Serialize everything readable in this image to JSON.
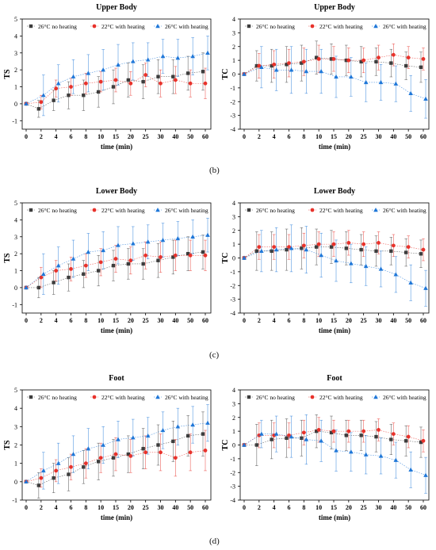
{
  "panel_letters": [
    "(b)",
    "(c)",
    "(d)"
  ],
  "colors": {
    "no_heating": "#3d3d3d",
    "w22_heating": "#e8322b",
    "w26_heating": "#1f77d8",
    "axis": "#000000"
  },
  "chart_data": [
    {
      "type": "scatter",
      "title": "Upper Body",
      "xlabel": "time (min)",
      "ylabel": "TS",
      "categories": [
        "0",
        "2",
        "4",
        "6",
        "8",
        "10",
        "15",
        "20",
        "25",
        "30",
        "40",
        "50",
        "60"
      ],
      "ylim": [
        -1.5,
        5
      ],
      "yticks": [
        -1,
        0,
        1,
        2,
        3,
        4,
        5
      ],
      "legend": "top",
      "grid": false,
      "series": [
        {
          "name": "26°C no heating",
          "marker": "square",
          "values": [
            0,
            -0.3,
            0.2,
            0.5,
            0.5,
            0.7,
            1.0,
            1.4,
            1.3,
            1.6,
            1.6,
            1.8,
            1.9
          ],
          "error": [
            0,
            0.5,
            0.6,
            0.8,
            0.9,
            0.9,
            1.0,
            1.0,
            1.0,
            1.0,
            1.0,
            1.0,
            1.1
          ]
        },
        {
          "name": "22°C with heating",
          "marker": "circle",
          "values": [
            0,
            0.1,
            0.9,
            1.0,
            1.2,
            1.3,
            1.4,
            1.2,
            1.7,
            1.2,
            1.4,
            1.2,
            1.2
          ],
          "error": [
            0,
            0.4,
            0.5,
            0.5,
            0.6,
            0.6,
            0.7,
            0.7,
            0.7,
            0.8,
            0.8,
            0.8,
            0.9
          ]
        },
        {
          "name": "26°C with heating",
          "marker": "triangle",
          "values": [
            0,
            0.5,
            1.2,
            1.6,
            1.8,
            2.0,
            2.3,
            2.5,
            2.6,
            2.8,
            2.7,
            2.8,
            3.0
          ],
          "error": [
            0,
            1.2,
            1.1,
            1.0,
            1.1,
            1.2,
            1.2,
            1.1,
            1.0,
            1.0,
            1.1,
            1.1,
            1.0
          ]
        }
      ]
    },
    {
      "type": "scatter",
      "title": "Upper Body",
      "xlabel": "time (min)",
      "ylabel": "TC",
      "categories": [
        "0",
        "2",
        "4",
        "6",
        "8",
        "10",
        "15",
        "20",
        "25",
        "30",
        "40",
        "50",
        "60"
      ],
      "ylim": [
        -4,
        4
      ],
      "yticks": [
        -4,
        -3,
        -2,
        -1,
        0,
        1,
        2,
        3,
        4
      ],
      "legend": "top",
      "grid": false,
      "series": [
        {
          "name": "26°C no heating",
          "marker": "square",
          "values": [
            0,
            0.6,
            0.6,
            0.7,
            0.8,
            1.2,
            1.1,
            1.0,
            0.9,
            0.9,
            0.8,
            0.6,
            0.5
          ],
          "error": [
            0,
            1.1,
            1.2,
            1.3,
            1.3,
            1.2,
            1.1,
            1.1,
            1.1,
            1.0,
            1.0,
            1.0,
            1.1
          ]
        },
        {
          "name": "22°C with heating",
          "marker": "circle",
          "values": [
            0,
            0.6,
            0.7,
            0.8,
            0.9,
            1.1,
            1.1,
            1.0,
            1.0,
            1.2,
            1.4,
            1.2,
            1.1
          ],
          "error": [
            0,
            0.9,
            1.0,
            1.0,
            1.0,
            1.0,
            0.9,
            0.9,
            0.9,
            0.9,
            0.8,
            0.8,
            0.8
          ]
        },
        {
          "name": "26°C with heating",
          "marker": "triangle",
          "values": [
            0,
            0.5,
            0.3,
            0.3,
            0.2,
            0.2,
            -0.2,
            -0.2,
            -0.6,
            -0.6,
            -0.7,
            -1.4,
            -1.8
          ],
          "error": [
            0,
            1.5,
            1.5,
            1.7,
            1.6,
            1.6,
            1.5,
            1.4,
            1.4,
            1.3,
            1.3,
            1.3,
            1.4
          ]
        }
      ]
    },
    {
      "type": "scatter",
      "title": "Lower Body",
      "xlabel": "time (min)",
      "ylabel": "TS",
      "categories": [
        "0",
        "2",
        "4",
        "6",
        "8",
        "10",
        "15",
        "20",
        "25",
        "30",
        "40",
        "50",
        "60"
      ],
      "ylim": [
        -1.5,
        5
      ],
      "yticks": [
        -1,
        0,
        1,
        2,
        3,
        4,
        5
      ],
      "legend": "top",
      "grid": false,
      "series": [
        {
          "name": "26°C no heating",
          "marker": "square",
          "values": [
            0,
            0.0,
            0.3,
            0.6,
            0.8,
            1.0,
            1.3,
            1.4,
            1.4,
            1.6,
            1.8,
            2.0,
            2.1
          ],
          "error": [
            0,
            0.6,
            0.7,
            0.8,
            0.8,
            0.9,
            0.9,
            0.9,
            0.9,
            1.0,
            1.0,
            1.0,
            1.0
          ]
        },
        {
          "name": "22°C with heating",
          "marker": "circle",
          "values": [
            0,
            0.6,
            1.0,
            1.1,
            1.3,
            1.5,
            1.7,
            1.6,
            1.9,
            1.8,
            1.9,
            1.9,
            1.9
          ],
          "error": [
            0,
            0.6,
            0.6,
            0.7,
            0.7,
            0.8,
            0.8,
            0.8,
            0.8,
            0.9,
            0.9,
            0.9,
            0.9
          ]
        },
        {
          "name": "26°C with heating",
          "marker": "triangle",
          "values": [
            0,
            0.8,
            1.3,
            1.7,
            2.1,
            2.2,
            2.5,
            2.6,
            2.7,
            2.8,
            2.9,
            3.0,
            3.1
          ],
          "error": [
            0,
            1.2,
            1.1,
            1.1,
            1.1,
            1.1,
            1.1,
            1.0,
            1.0,
            1.0,
            1.0,
            1.0,
            1.0
          ]
        }
      ]
    },
    {
      "type": "scatter",
      "title": "Lower Body",
      "xlabel": "time (min)",
      "ylabel": "TC",
      "categories": [
        "0",
        "2",
        "4",
        "6",
        "8",
        "10",
        "15",
        "20",
        "25",
        "30",
        "40",
        "50",
        "60"
      ],
      "ylim": [
        -4,
        4
      ],
      "yticks": [
        -4,
        -3,
        -2,
        -1,
        0,
        1,
        2,
        3,
        4
      ],
      "legend": "top",
      "grid": false,
      "series": [
        {
          "name": "26°C no heating",
          "marker": "square",
          "values": [
            0,
            0.5,
            0.5,
            0.6,
            0.7,
            0.8,
            0.8,
            0.7,
            0.6,
            0.5,
            0.5,
            0.4,
            0.3
          ],
          "error": [
            0,
            1.4,
            1.4,
            1.5,
            1.5,
            1.3,
            1.2,
            1.2,
            1.1,
            1.1,
            1.0,
            1.0,
            1.0
          ]
        },
        {
          "name": "22°C with heating",
          "marker": "circle",
          "values": [
            0,
            0.8,
            0.8,
            0.8,
            0.9,
            1.0,
            1.0,
            1.1,
            1.0,
            1.1,
            0.9,
            0.8,
            0.6
          ],
          "error": [
            0,
            0.9,
            0.9,
            0.9,
            0.9,
            0.9,
            0.9,
            0.9,
            0.9,
            0.8,
            0.8,
            0.8,
            0.8
          ]
        },
        {
          "name": "26°C with heating",
          "marker": "triangle",
          "values": [
            0,
            0.5,
            0.6,
            0.7,
            0.6,
            0.2,
            -0.2,
            -0.4,
            -0.6,
            -0.8,
            -1.2,
            -1.8,
            -2.2
          ],
          "error": [
            0,
            1.5,
            1.6,
            1.7,
            1.7,
            1.6,
            1.5,
            1.4,
            1.4,
            1.3,
            1.3,
            1.3,
            1.3
          ]
        }
      ]
    },
    {
      "type": "scatter",
      "title": "Foot",
      "xlabel": "time (min)",
      "ylabel": "TS",
      "categories": [
        "0",
        "2",
        "4",
        "6",
        "8",
        "10",
        "15",
        "20",
        "25",
        "30",
        "40",
        "50",
        "60"
      ],
      "ylim": [
        -1,
        5
      ],
      "yticks": [
        -1,
        0,
        1,
        2,
        3,
        4,
        5
      ],
      "legend": "top",
      "grid": false,
      "series": [
        {
          "name": "26°C no heating",
          "marker": "square",
          "values": [
            0,
            -0.2,
            0.2,
            0.4,
            0.8,
            1.1,
            1.3,
            1.5,
            1.8,
            2.0,
            2.2,
            2.5,
            2.6
          ],
          "error": [
            0,
            0.7,
            0.8,
            0.9,
            0.9,
            1.0,
            1.0,
            1.0,
            1.1,
            1.1,
            1.1,
            1.1,
            1.2
          ]
        },
        {
          "name": "22°C with heating",
          "marker": "circle",
          "values": [
            0,
            0.2,
            0.6,
            0.8,
            1.0,
            1.3,
            1.5,
            1.4,
            1.6,
            1.6,
            1.3,
            1.6,
            1.7
          ],
          "error": [
            0,
            0.5,
            0.6,
            0.7,
            0.8,
            0.8,
            0.9,
            0.9,
            0.9,
            1.0,
            1.0,
            1.0,
            1.1
          ]
        },
        {
          "name": "26°C with heating",
          "marker": "triangle",
          "values": [
            0,
            0.6,
            1.0,
            1.5,
            1.8,
            2.0,
            2.3,
            2.4,
            2.5,
            2.8,
            3.0,
            3.1,
            3.2
          ],
          "error": [
            0,
            1.0,
            1.1,
            1.0,
            1.1,
            1.0,
            1.0,
            1.0,
            1.0,
            1.0,
            1.0,
            1.0,
            1.0
          ]
        }
      ]
    },
    {
      "type": "scatter",
      "title": "Foot",
      "xlabel": "time (min)",
      "ylabel": "TC",
      "categories": [
        "0",
        "2",
        "4",
        "6",
        "8",
        "10",
        "15",
        "20",
        "25",
        "30",
        "40",
        "50",
        "60"
      ],
      "ylim": [
        -4,
        4
      ],
      "yticks": [
        -4,
        -3,
        -2,
        -1,
        0,
        1,
        2,
        3,
        4
      ],
      "legend": "top",
      "grid": false,
      "series": [
        {
          "name": "26°C no heating",
          "marker": "square",
          "values": [
            0,
            0.0,
            0.4,
            0.5,
            0.5,
            1.0,
            0.9,
            0.7,
            0.7,
            0.6,
            0.4,
            0.3,
            0.2
          ],
          "error": [
            0,
            1.5,
            1.4,
            1.4,
            1.3,
            1.2,
            1.2,
            1.1,
            1.1,
            1.1,
            1.1,
            1.1,
            1.1
          ]
        },
        {
          "name": "22°C with heating",
          "marker": "circle",
          "values": [
            0,
            0.7,
            0.7,
            0.7,
            0.9,
            1.1,
            1.0,
            1.0,
            1.0,
            1.1,
            0.8,
            0.6,
            0.3
          ],
          "error": [
            0,
            0.9,
            0.9,
            0.9,
            0.9,
            0.9,
            0.8,
            0.8,
            0.8,
            0.8,
            0.8,
            0.8,
            0.8
          ]
        },
        {
          "name": "26°C with heating",
          "marker": "triangle",
          "values": [
            0,
            0.8,
            0.8,
            0.6,
            0.4,
            0.3,
            -0.4,
            -0.5,
            -0.7,
            -0.8,
            -1.1,
            -1.8,
            -2.2
          ],
          "error": [
            0,
            1.0,
            1.3,
            1.5,
            1.8,
            1.5,
            1.5,
            1.4,
            1.4,
            1.3,
            1.3,
            1.3,
            1.3
          ]
        }
      ]
    }
  ]
}
